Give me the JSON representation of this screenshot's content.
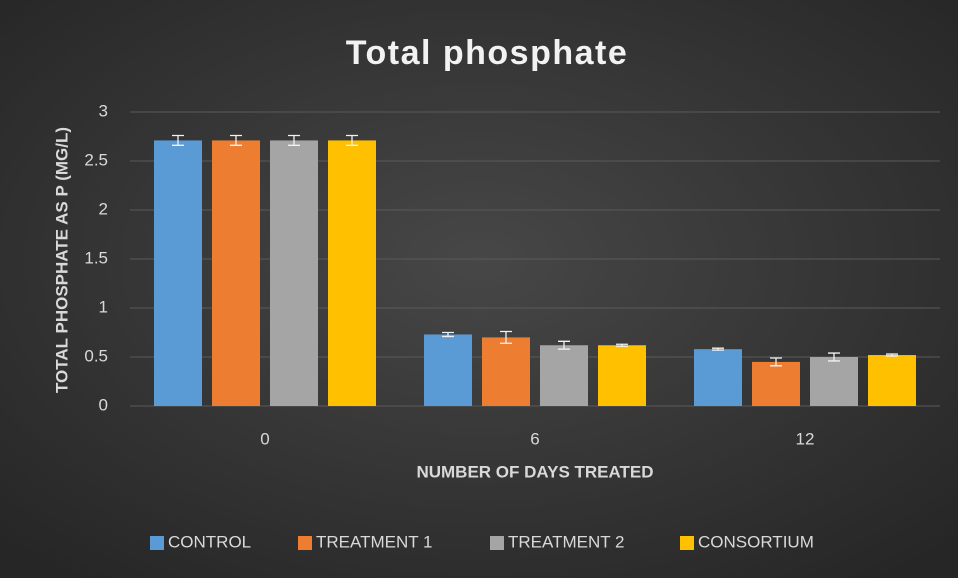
{
  "chart_data": {
    "type": "bar",
    "title": "Total phosphate",
    "x_label": "NUMBER OF DAYS TREATED",
    "y_label": "TOTAL PHOSPHATE AS P (MG/L)",
    "categories": [
      "0",
      "6",
      "12"
    ],
    "series": [
      {
        "name": "CONTROL",
        "color": "#5b9bd5",
        "values": [
          2.71,
          0.73,
          0.58
        ],
        "errors": [
          0.05,
          0.02,
          0.01
        ]
      },
      {
        "name": "TREATMENT 1",
        "color": "#ed7d31",
        "values": [
          2.71,
          0.7,
          0.45
        ],
        "errors": [
          0.05,
          0.06,
          0.04
        ]
      },
      {
        "name": "TREATMENT 2",
        "color": "#a5a5a5",
        "values": [
          2.71,
          0.62,
          0.5
        ],
        "errors": [
          0.05,
          0.04,
          0.04
        ]
      },
      {
        "name": "CONSORTIUM",
        "color": "#ffc000",
        "values": [
          2.71,
          0.62,
          0.52
        ],
        "errors": [
          0.05,
          0.01,
          0.01
        ]
      }
    ],
    "ylim": [
      0,
      3
    ],
    "yticks": [
      0,
      0.5,
      1,
      1.5,
      2,
      2.5,
      3
    ],
    "grid": true,
    "legend": "bottom"
  }
}
